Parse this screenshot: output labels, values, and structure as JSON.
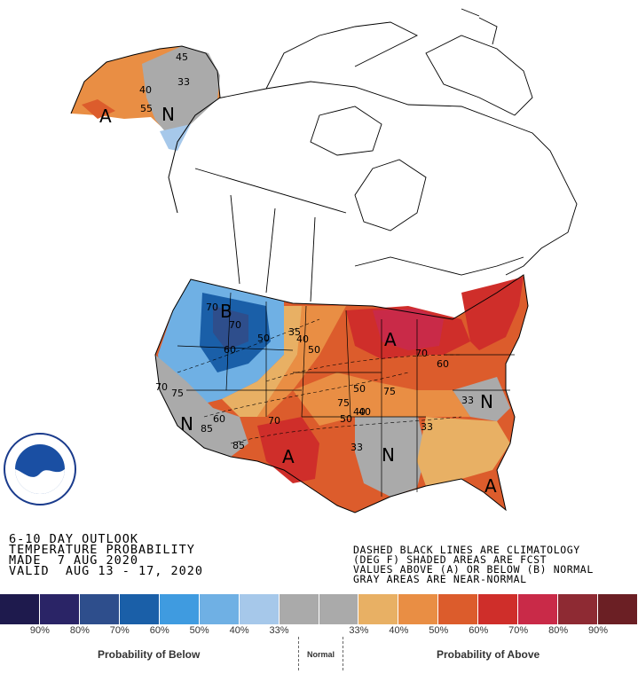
{
  "map": {
    "region_labels": [
      {
        "id": "ak-a",
        "text": "A"
      },
      {
        "id": "ak-n",
        "text": "N"
      },
      {
        "id": "nw-b",
        "text": "B"
      },
      {
        "id": "sw-n",
        "text": "N"
      },
      {
        "id": "tx-a",
        "text": "A"
      },
      {
        "id": "gl-a",
        "text": "A"
      },
      {
        "id": "se-n",
        "text": "N"
      },
      {
        "id": "gulf-n",
        "text": "N"
      },
      {
        "id": "fl-a",
        "text": "A"
      }
    ],
    "contour_labels": [
      {
        "id": "c1",
        "text": "45"
      },
      {
        "id": "c2",
        "text": "40"
      },
      {
        "id": "c3",
        "text": "33"
      },
      {
        "id": "c4",
        "text": "55"
      },
      {
        "id": "c5",
        "text": "70"
      },
      {
        "id": "c6",
        "text": "70"
      },
      {
        "id": "c7",
        "text": "50"
      },
      {
        "id": "c8",
        "text": "60"
      },
      {
        "id": "c9",
        "text": "35"
      },
      {
        "id": "c10",
        "text": "40"
      },
      {
        "id": "c11",
        "text": "50"
      },
      {
        "id": "c12",
        "text": "70"
      },
      {
        "id": "c13",
        "text": "75"
      },
      {
        "id": "c14",
        "text": "50"
      },
      {
        "id": "c15",
        "text": "40"
      },
      {
        "id": "c16",
        "text": "50"
      },
      {
        "id": "c17",
        "text": "33"
      },
      {
        "id": "c18",
        "text": "33"
      },
      {
        "id": "c19",
        "text": "33"
      },
      {
        "id": "c20",
        "text": "60"
      },
      {
        "id": "c21",
        "text": "70"
      },
      {
        "id": "c22",
        "text": "85"
      },
      {
        "id": "c23",
        "text": "85"
      },
      {
        "id": "c24",
        "text": "75"
      },
      {
        "id": "c25",
        "text": "70"
      },
      {
        "id": "c26",
        "text": "40"
      },
      {
        "id": "c27",
        "text": "60"
      },
      {
        "id": "c28",
        "text": "75"
      }
    ]
  },
  "title": {
    "line1": "6-10 DAY OUTLOOK",
    "line2": "TEMPERATURE PROBABILITY",
    "line3": "MADE  7 AUG 2020",
    "line4": "VALID  AUG 13 - 17, 2020"
  },
  "notes": {
    "line1": "DASHED BLACK LINES ARE CLIMATOLOGY",
    "line2": "(DEG F) SHADED AREAS ARE FCST",
    "line3": "VALUES ABOVE (A) OR BELOW (B) NORMAL",
    "line4": "GRAY AREAS ARE NEAR-NORMAL"
  },
  "legend": {
    "colors": [
      "#1e1a4d",
      "#2a2466",
      "#2e4e8c",
      "#1a5fa8",
      "#3f9be0",
      "#6fb0e4",
      "#a6c8ea",
      "#aaaaaa",
      "#aaaaaa",
      "#e8b064",
      "#e98e44",
      "#dc5c2c",
      "#cf2e2a",
      "#c92a48",
      "#8e2a33",
      "#6b1f24"
    ],
    "ticks": [
      "90%",
      "80%",
      "70%",
      "60%",
      "50%",
      "40%",
      "33%",
      "",
      "33%",
      "40%",
      "50%",
      "60%",
      "70%",
      "80%",
      "90%"
    ],
    "below_label": "Probability of Below",
    "normal_label": "Normal",
    "above_label": "Probability of Above"
  }
}
